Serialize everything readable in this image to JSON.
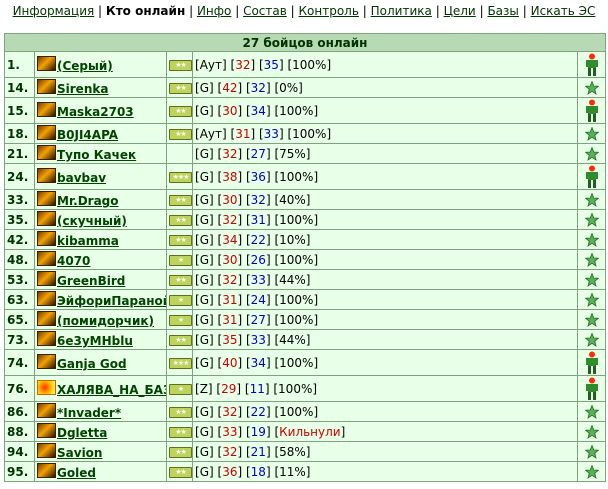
{
  "nav": {
    "items": [
      {
        "label": "Информация",
        "active": false
      },
      {
        "label": "Кто онлайн",
        "active": true
      },
      {
        "label": "Инфо",
        "active": false
      },
      {
        "label": "Состав",
        "active": false
      },
      {
        "label": "Контроль",
        "active": false
      },
      {
        "label": "Политика",
        "active": false
      },
      {
        "label": "Цели",
        "active": false
      },
      {
        "label": "Базы",
        "active": false
      },
      {
        "label": "Искать ЭС",
        "active": false
      }
    ],
    "separator": "|"
  },
  "table": {
    "title": "27 бойцов онлайн",
    "rows": [
      {
        "num": "1.",
        "name": "(Серый)",
        "rank": "★★",
        "loc": "Аут",
        "a": "32",
        "b": "35",
        "c": "100%",
        "status": "soldier",
        "clan": "normal",
        "h": 26
      },
      {
        "num": "14.",
        "name": "Sirenka",
        "rank": "★★",
        "loc": "G",
        "a": "42",
        "b": "32",
        "c": "0%",
        "status": "star",
        "clan": "normal",
        "h": 20
      },
      {
        "num": "15.",
        "name": "Maska2703",
        "rank": "★★",
        "loc": "G",
        "a": "30",
        "b": "34",
        "c": "100%",
        "status": "soldier",
        "clan": "normal",
        "h": 26
      },
      {
        "num": "18.",
        "name": "B0JI4APA",
        "rank": "★★",
        "loc": "Аут",
        "a": "31",
        "b": "33",
        "c": "100%",
        "status": "star",
        "clan": "normal",
        "h": 20
      },
      {
        "num": "21.",
        "name": "Тупо Качек",
        "rank": "",
        "loc": "G",
        "a": "32",
        "b": "27",
        "c": "75%",
        "status": "star",
        "clan": "normal",
        "h": 20
      },
      {
        "num": "24.",
        "name": "bavbav",
        "rank": "★★★",
        "loc": "G",
        "a": "38",
        "b": "36",
        "c": "100%",
        "status": "soldier",
        "clan": "normal",
        "h": 26
      },
      {
        "num": "33.",
        "name": "Mr.Drago",
        "rank": "★★",
        "loc": "G",
        "a": "30",
        "b": "32",
        "c": "40%",
        "status": "star",
        "clan": "normal",
        "h": 20
      },
      {
        "num": "35.",
        "name": "(скучный)",
        "rank": "★★",
        "loc": "G",
        "a": "32",
        "b": "31",
        "c": "100%",
        "status": "star",
        "clan": "normal",
        "h": 20
      },
      {
        "num": "42.",
        "name": "kibamma",
        "rank": "★★",
        "loc": "G",
        "a": "34",
        "b": "22",
        "c": "10%",
        "status": "star",
        "clan": "normal",
        "h": 20
      },
      {
        "num": "48.",
        "name": "4070",
        "rank": "★",
        "loc": "G",
        "a": "30",
        "b": "26",
        "c": "100%",
        "status": "star",
        "clan": "normal",
        "h": 20
      },
      {
        "num": "53.",
        "name": "GreenBird",
        "rank": "★★",
        "loc": "G",
        "a": "32",
        "b": "33",
        "c": "44%",
        "status": "star",
        "clan": "normal",
        "h": 20
      },
      {
        "num": "63.",
        "name": "ЭйфориПаранойа",
        "rank": "★",
        "loc": "G",
        "a": "31",
        "b": "24",
        "c": "100%",
        "status": "star",
        "clan": "normal",
        "h": 20
      },
      {
        "num": "65.",
        "name": "(помидорчик)",
        "rank": "★",
        "loc": "G",
        "a": "31",
        "b": "27",
        "c": "100%",
        "status": "star",
        "clan": "normal",
        "h": 20
      },
      {
        "num": "73.",
        "name": "6e3yMHblu",
        "rank": "★★",
        "loc": "G",
        "a": "35",
        "b": "33",
        "c": "44%",
        "status": "star",
        "clan": "normal",
        "h": 20
      },
      {
        "num": "74.",
        "name": "Ganja God",
        "rank": "★★★",
        "loc": "G",
        "a": "40",
        "b": "34",
        "c": "100%",
        "status": "soldier",
        "clan": "normal",
        "h": 26
      },
      {
        "num": "76.",
        "name": "ХАЛЯВА_НА_БАЗЕ",
        "rank": "★",
        "loc": "Z",
        "a": "29",
        "b": "11",
        "c": "100%",
        "status": "soldier",
        "clan": "red",
        "h": 26
      },
      {
        "num": "86.",
        "name": "*Invader*",
        "rank": "★★",
        "loc": "G",
        "a": "32",
        "b": "22",
        "c": "100%",
        "status": "star",
        "clan": "normal",
        "h": 20
      },
      {
        "num": "88.",
        "name": "Dgletta",
        "rank": "★★",
        "loc": "G",
        "a": "33",
        "b": "19",
        "c": "Кильнули",
        "status": "star",
        "clan": "normal",
        "h": 20
      },
      {
        "num": "94.",
        "name": "Savion",
        "rank": "★★",
        "loc": "G",
        "a": "32",
        "b": "21",
        "c": "58%",
        "status": "star",
        "clan": "normal",
        "h": 20
      },
      {
        "num": "95.",
        "name": "Goled",
        "rank": "★★",
        "loc": "G",
        "a": "36",
        "b": "18",
        "c": "11%",
        "status": "star",
        "clan": "normal",
        "h": 20
      }
    ]
  },
  "colors": {
    "header_bg": "#b7d9b3",
    "row_bg": "#e8ffe8",
    "border": "#7fa27f",
    "link": "#004400",
    "red": "#cc0000",
    "blue": "#0000cc"
  },
  "icons": {
    "clan": "clan-emblem-icon",
    "rank": "rank-star-badge-icon",
    "soldier": "soldier-icon",
    "star": "green-star-icon"
  }
}
